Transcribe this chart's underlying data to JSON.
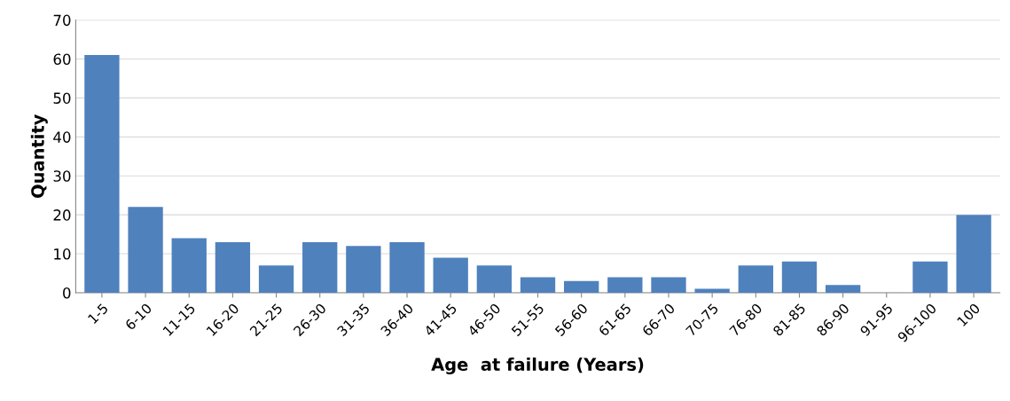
{
  "chart_data": {
    "type": "bar",
    "xlabel": "Age  at failure (Years)",
    "ylabel": "Quantity",
    "categories": [
      "1-5",
      "6-10",
      "11-15",
      "16-20",
      "21-25",
      "26-30",
      "31-35",
      "36-40",
      "41-45",
      "46-50",
      "51-55",
      "56-60",
      "61-65",
      "66-70",
      "70-75",
      "76-80",
      "81-85",
      "86-90",
      "91-95",
      "96-100",
      "100"
    ],
    "values": [
      61,
      22,
      14,
      13,
      7,
      13,
      12,
      13,
      9,
      7,
      4,
      3,
      4,
      4,
      1,
      7,
      8,
      2,
      0,
      8,
      20
    ],
    "color": "#4f81bd",
    "ylim": [
      0,
      70
    ],
    "yticks": [
      0,
      10,
      20,
      30,
      40,
      50,
      60,
      70
    ],
    "grid": "y"
  }
}
